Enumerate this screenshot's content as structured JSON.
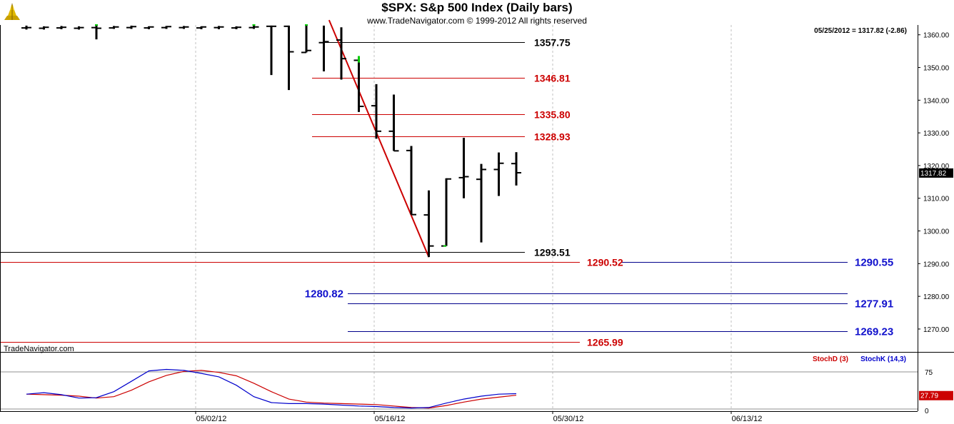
{
  "header": {
    "title": "$SPX:  S&p 500 Index  (Daily bars)",
    "subtitle": "www.TradeNavigator.com © 1999-2012 All rights reserved"
  },
  "price_panel": {
    "last_bar_readout": "05/25/2012 = 1317.82 (-2.86)",
    "last_price_tag": "1317.82",
    "watermark": "TradeNavigator.com",
    "y_ticks": [
      "1360.00",
      "1350.00",
      "1340.00",
      "1330.00",
      "1320.00",
      "1310.00",
      "1300.00",
      "1290.00",
      "1280.00",
      "1270.00"
    ]
  },
  "stoch_panel": {
    "legend_d": "StochD (3)",
    "legend_k": "StochK (14,3)",
    "y_ticks": [
      "75",
      "0"
    ],
    "last_value_tag": "27.79"
  },
  "x_ticks": [
    "05/02/12",
    "05/16/12",
    "05/30/12",
    "06/13/12"
  ],
  "colors": {
    "bar": "#000000",
    "red_line": "#cc0000",
    "blue_line": "#00008b",
    "label_red": "#cc0000",
    "label_blue": "#1010cc",
    "grid": "#c0c0c0",
    "up_tick": "#00cc00",
    "stoch_k": "#0000cc",
    "stoch_d": "#cc0000"
  },
  "chart_data": [
    {
      "type": "bar",
      "title": "$SPX:  S&p 500 Index  (Daily bars)",
      "xlabel": "",
      "ylabel": "",
      "x_ticks": [
        "05/02/12",
        "05/16/12",
        "05/30/12",
        "06/13/12"
      ],
      "ylim": [
        1263,
        1363
      ],
      "grid": true,
      "series_ohlc": [
        {
          "i": 0,
          "o": 1362.1,
          "h": 1362.8,
          "l": 1361.6,
          "c": 1362.2
        },
        {
          "i": 1,
          "o": 1362.0,
          "h": 1362.6,
          "l": 1361.6,
          "c": 1362.3
        },
        {
          "i": 2,
          "o": 1362.1,
          "h": 1362.7,
          "l": 1361.7,
          "c": 1362.3
        },
        {
          "i": 3,
          "o": 1362.0,
          "h": 1362.6,
          "l": 1361.6,
          "c": 1362.2
        },
        {
          "i": 4,
          "o": 1362.2,
          "h": 1362.8,
          "l": 1358.6,
          "c": 1362.0
        },
        {
          "i": 5,
          "o": 1362.1,
          "h": 1362.7,
          "l": 1361.8,
          "c": 1362.4
        },
        {
          "i": 6,
          "o": 1362.2,
          "h": 1362.8,
          "l": 1361.8,
          "c": 1362.5
        },
        {
          "i": 7,
          "o": 1362.1,
          "h": 1362.6,
          "l": 1361.7,
          "c": 1362.4
        },
        {
          "i": 8,
          "o": 1362.2,
          "h": 1362.7,
          "l": 1361.8,
          "c": 1362.5
        },
        {
          "i": 9,
          "o": 1362.2,
          "h": 1362.7,
          "l": 1361.8,
          "c": 1362.4
        },
        {
          "i": 10,
          "o": 1362.1,
          "h": 1362.6,
          "l": 1361.7,
          "c": 1362.4
        },
        {
          "i": 11,
          "o": 1362.2,
          "h": 1362.7,
          "l": 1361.7,
          "c": 1362.4
        },
        {
          "i": 12,
          "o": 1362.1,
          "h": 1362.6,
          "l": 1361.7,
          "c": 1362.3
        },
        {
          "i": 13,
          "o": 1362.2,
          "h": 1362.8,
          "l": 1361.8,
          "c": 1362.4
        },
        {
          "i": 14,
          "o": 1362.6,
          "h": 1362.8,
          "l": 1347.7,
          "c": 1362.6
        },
        {
          "i": 15,
          "o": 1362.6,
          "h": 1362.8,
          "l": 1343.1,
          "c": 1354.8
        },
        {
          "i": 16,
          "o": 1354.6,
          "h": 1362.8,
          "l": 1354.6,
          "c": 1355.2
        },
        {
          "i": 17,
          "o": 1357.6,
          "h": 1362.8,
          "l": 1348.8,
          "c": 1357.9
        },
        {
          "i": 18,
          "o": 1358.4,
          "h": 1362.3,
          "l": 1346.3,
          "c": 1352.7
        },
        {
          "i": 19,
          "o": 1352.2,
          "h": 1353.5,
          "l": 1336.4,
          "c": 1338.1
        },
        {
          "i": 20,
          "o": 1338.3,
          "h": 1344.9,
          "l": 1328.2,
          "c": 1330.5
        },
        {
          "i": 21,
          "o": 1330.5,
          "h": 1341.7,
          "l": 1324.5,
          "c": 1324.5
        },
        {
          "i": 22,
          "o": 1324.6,
          "h": 1326.0,
          "l": 1305.0,
          "c": 1305.0
        },
        {
          "i": 23,
          "o": 1304.9,
          "h": 1312.4,
          "l": 1292.0,
          "c": 1295.4
        },
        {
          "i": 24,
          "o": 1295.4,
          "h": 1316.1,
          "l": 1295.4,
          "c": 1315.9
        },
        {
          "i": 25,
          "o": 1316.3,
          "h": 1328.5,
          "l": 1310.0,
          "c": 1316.6
        },
        {
          "i": 26,
          "o": 1315.8,
          "h": 1320.5,
          "l": 1296.5,
          "c": 1318.8
        },
        {
          "i": 27,
          "o": 1318.8,
          "h": 1324.0,
          "l": 1310.7,
          "c": 1320.7
        },
        {
          "i": 28,
          "o": 1320.6,
          "h": 1324.1,
          "l": 1313.9,
          "c": 1317.8
        }
      ],
      "level_lines": [
        {
          "value": 1357.75,
          "label": "1357.75",
          "color": "black"
        },
        {
          "value": 1346.81,
          "label": "1346.81",
          "color": "red"
        },
        {
          "value": 1335.8,
          "label": "1335.80",
          "color": "red"
        },
        {
          "value": 1328.93,
          "label": "1328.93",
          "color": "red"
        },
        {
          "value": 1293.51,
          "label": "1293.51",
          "color": "black"
        },
        {
          "value": 1290.52,
          "label": "1290.52",
          "color": "red"
        },
        {
          "value": 1290.55,
          "label": "1290.55",
          "color": "blue"
        },
        {
          "value": 1280.82,
          "label": "1280.82",
          "color": "blue"
        },
        {
          "value": 1277.91,
          "label": "1277.91",
          "color": "blue"
        },
        {
          "value": 1269.23,
          "label": "1269.23",
          "color": "blue"
        },
        {
          "value": 1265.99,
          "label": "1265.99",
          "color": "red"
        }
      ],
      "trendline": {
        "from": {
          "i": 17.3,
          "v": 1364.5
        },
        "to": {
          "i": 23.0,
          "v": 1292.0
        }
      }
    },
    {
      "type": "line",
      "title": "",
      "ylim": [
        0,
        100
      ],
      "y_ticks": [
        75,
        0
      ],
      "series": [
        {
          "name": "StochD (3)",
          "values": [
            30,
            29,
            28,
            26,
            22,
            25,
            38,
            55,
            68,
            76,
            78,
            74,
            67,
            52,
            35,
            20,
            14,
            12,
            11,
            10,
            9,
            6,
            3,
            2,
            7,
            14,
            20,
            24,
            27.79
          ]
        },
        {
          "name": "StochK (14,3)",
          "values": [
            30,
            33,
            29,
            22,
            23,
            35,
            56,
            77,
            80,
            78,
            72,
            65,
            48,
            25,
            13,
            11,
            11,
            10,
            8,
            6,
            5,
            3,
            2,
            3,
            12,
            20,
            26,
            30,
            31
          ]
        }
      ]
    }
  ]
}
